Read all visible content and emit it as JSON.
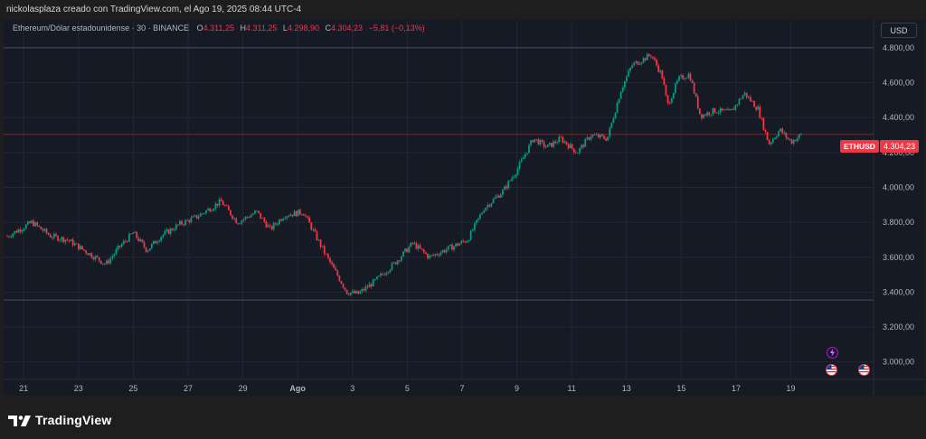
{
  "header": {
    "caption": "nickolasplaza creado con TradingView.com, el Ago 19, 2025 08:44 UTC-4"
  },
  "legend": {
    "symbol": "Ethereum/Dólar estadounidense · 30 · BINANCE",
    "o_label": "O",
    "o_value": "4.311,25",
    "h_label": "H",
    "h_value": "4.311,25",
    "l_label": "L",
    "l_value": "4.298,90",
    "c_label": "C",
    "c_value": "4.304,23",
    "change": "−5,81 (−0,13%)"
  },
  "currency_button": "USD",
  "last_price": {
    "symbol": "ETHUSD",
    "value": "4.304,23"
  },
  "footer": {
    "brand": "TradingView"
  },
  "events": [
    {
      "icon": "lightning-icon",
      "color": "#9c27b0"
    },
    {
      "icon": "us-flag-icon",
      "color": "#f23645"
    },
    {
      "icon": "us-flag-icon",
      "color": "#f23645"
    }
  ],
  "chart_data": {
    "type": "candlestick",
    "title": "",
    "xlabel": "",
    "ylabel": "",
    "ylim": [
      2900,
      4960
    ],
    "yticks": [
      {
        "value": 3000,
        "label": "3.000,00"
      },
      {
        "value": 3200,
        "label": "3.200,00"
      },
      {
        "value": 3400,
        "label": "3.400,00"
      },
      {
        "value": 3600,
        "label": "3.600,00"
      },
      {
        "value": 3800,
        "label": "3.800,00"
      },
      {
        "value": 4000,
        "label": "4.000,00"
      },
      {
        "value": 4200,
        "label": "4.200,00"
      },
      {
        "value": 4400,
        "label": "4.400,00"
      },
      {
        "value": 4600,
        "label": "4.600,00"
      },
      {
        "value": 4800,
        "label": "4.800,00"
      }
    ],
    "xlim": [
      20.4,
      50.5
    ],
    "xticks": [
      {
        "day": 21,
        "label": "21"
      },
      {
        "day": 23,
        "label": "23"
      },
      {
        "day": 25,
        "label": "25"
      },
      {
        "day": 27,
        "label": "27"
      },
      {
        "day": 29,
        "label": "29"
      },
      {
        "day": 31,
        "label": "Ago"
      },
      {
        "day": 33,
        "label": "3"
      },
      {
        "day": 35,
        "label": "5"
      },
      {
        "day": 37,
        "label": "7"
      },
      {
        "day": 39,
        "label": "9"
      },
      {
        "day": 41,
        "label": "11"
      },
      {
        "day": 43,
        "label": "13"
      },
      {
        "day": 45,
        "label": "15"
      },
      {
        "day": 47,
        "label": "17"
      },
      {
        "day": 49,
        "label": "19"
      }
    ],
    "reference_lines": [
      {
        "value": 4800,
        "label": ""
      },
      {
        "value": 4304.23,
        "label": ""
      },
      {
        "value": 3355,
        "label": ""
      }
    ],
    "grid": true,
    "up_color": "#089981",
    "down_color": "#f23645",
    "path": [
      [
        20.4,
        3720
      ],
      [
        21.3,
        3800
      ],
      [
        22.0,
        3720
      ],
      [
        22.6,
        3700
      ],
      [
        23.3,
        3630
      ],
      [
        24.0,
        3560
      ],
      [
        24.5,
        3660
      ],
      [
        25.0,
        3740
      ],
      [
        25.5,
        3640
      ],
      [
        26.0,
        3720
      ],
      [
        26.7,
        3790
      ],
      [
        27.3,
        3830
      ],
      [
        28.2,
        3920
      ],
      [
        28.8,
        3800
      ],
      [
        29.5,
        3860
      ],
      [
        30.0,
        3760
      ],
      [
        30.5,
        3840
      ],
      [
        31.2,
        3860
      ],
      [
        32.0,
        3620
      ],
      [
        32.8,
        3400
      ],
      [
        33.2,
        3390
      ],
      [
        33.8,
        3460
      ],
      [
        34.5,
        3560
      ],
      [
        35.2,
        3680
      ],
      [
        35.8,
        3600
      ],
      [
        36.5,
        3650
      ],
      [
        37.2,
        3700
      ],
      [
        37.8,
        3880
      ],
      [
        38.5,
        3980
      ],
      [
        39.0,
        4100
      ],
      [
        39.6,
        4280
      ],
      [
        40.1,
        4230
      ],
      [
        40.6,
        4280
      ],
      [
        41.2,
        4200
      ],
      [
        41.7,
        4300
      ],
      [
        42.3,
        4280
      ],
      [
        42.8,
        4560
      ],
      [
        43.2,
        4700
      ],
      [
        43.9,
        4760
      ],
      [
        44.3,
        4640
      ],
      [
        44.5,
        4470
      ],
      [
        44.9,
        4620
      ],
      [
        45.3,
        4650
      ],
      [
        45.7,
        4410
      ],
      [
        46.2,
        4440
      ],
      [
        46.8,
        4430
      ],
      [
        47.3,
        4540
      ],
      [
        47.8,
        4450
      ],
      [
        48.2,
        4250
      ],
      [
        48.6,
        4330
      ],
      [
        49.0,
        4260
      ],
      [
        49.4,
        4304
      ]
    ]
  }
}
